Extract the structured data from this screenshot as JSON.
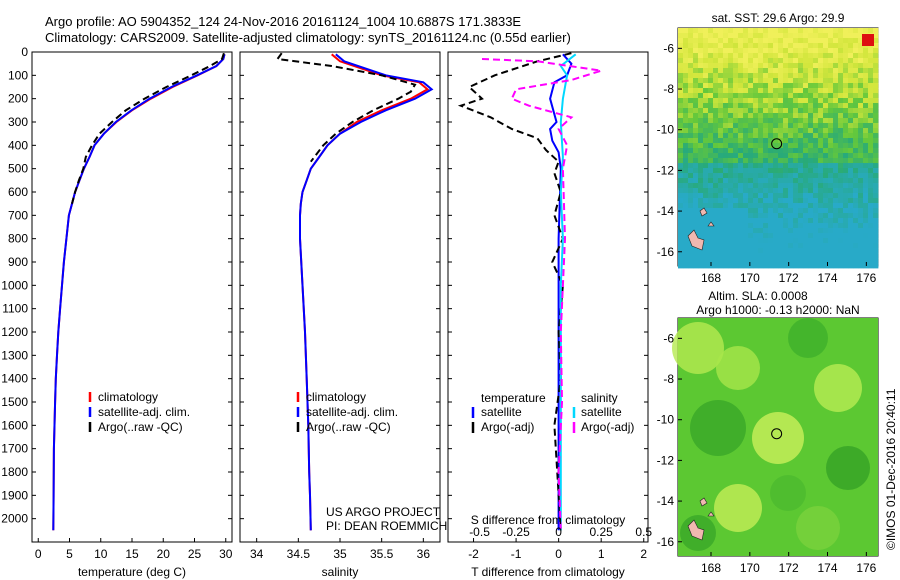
{
  "header": {
    "line1": "Argo profile: AO 5904352_124 24-Nov-2016 20161124_1004 10.6887S 171.3833E",
    "line2": "Climatology: CARS2009. Satellite-adjusted climatology: synTS_20161124.nc (0.55d earlier)"
  },
  "side_credit": "©IMOS 01-Dec-2016 20:40:11",
  "colors": {
    "climatology": "#ff0000",
    "satellite": "#0000ff",
    "argo": "#000000",
    "sat_diff": "#00d8ff",
    "argo_diff": "#ff00ff"
  },
  "chart_data": [
    {
      "id": "temperature",
      "type": "line",
      "xlabel": "temperature (deg C)",
      "ylabel": "",
      "xlim": [
        -1,
        31
      ],
      "ylim": [
        2100,
        0
      ],
      "xticks": [
        "0",
        "5",
        "10",
        "15",
        "20",
        "25",
        "30"
      ],
      "xtick_values": [
        0,
        5,
        10,
        15,
        20,
        25,
        30
      ],
      "yticks": [
        "0",
        "100",
        "200",
        "300",
        "400",
        "500",
        "600",
        "700",
        "800",
        "900",
        "1000",
        "1100",
        "1200",
        "1300",
        "1400",
        "1500",
        "1600",
        "1700",
        "1800",
        "1900",
        "2000"
      ],
      "ytick_values": [
        0,
        100,
        200,
        300,
        400,
        500,
        600,
        700,
        800,
        900,
        1000,
        1100,
        1200,
        1300,
        1400,
        1500,
        1600,
        1700,
        1800,
        1900,
        2000
      ],
      "legend": {
        "position": "lower-middle",
        "items": [
          "climatology",
          "satellite-adj. clim.",
          "Argo(..raw -QC)"
        ]
      },
      "series": [
        {
          "name": "climatology",
          "color": "red",
          "style": "solid",
          "x": [
            29.8,
            29.6,
            28.5,
            25.5,
            21.5,
            18,
            15,
            12.5,
            10.5,
            9,
            8.2,
            7.3,
            6.6,
            5.9,
            5.4,
            4.9,
            4.5,
            4.1,
            3.8,
            3.5,
            3.2,
            3,
            2.8,
            2.7,
            2.6,
            2.5,
            2.45,
            2.4
          ],
          "y": [
            10,
            30,
            60,
            100,
            150,
            200,
            250,
            300,
            350,
            400,
            450,
            500,
            550,
            600,
            650,
            700,
            800,
            900,
            1000,
            1100,
            1200,
            1300,
            1400,
            1500,
            1600,
            1700,
            1900,
            2050
          ]
        },
        {
          "name": "satellite-adj. clim.",
          "color": "blue",
          "style": "solid",
          "x": [
            29.8,
            29.6,
            28.5,
            25.4,
            21.3,
            17.8,
            14.9,
            12.4,
            10.5,
            9,
            8.2,
            7.3,
            6.6,
            5.9,
            5.4,
            4.9,
            4.5,
            4.1,
            3.8,
            3.5,
            3.2,
            3,
            2.8,
            2.7,
            2.6,
            2.5,
            2.45,
            2.4
          ],
          "y": [
            10,
            30,
            60,
            100,
            150,
            200,
            250,
            300,
            350,
            400,
            450,
            500,
            550,
            600,
            650,
            700,
            800,
            900,
            1000,
            1100,
            1200,
            1300,
            1400,
            1500,
            1600,
            1700,
            1900,
            2050
          ]
        },
        {
          "name": "Argo(..raw -QC)",
          "color": "black",
          "style": "dashed",
          "x": [
            29.7,
            29.4,
            27.5,
            24.5,
            20.5,
            17,
            14,
            11.8,
            9.8,
            8.6,
            7.6,
            7.2,
            6.5,
            5.9,
            5.4
          ],
          "y": [
            5,
            30,
            60,
            100,
            150,
            200,
            250,
            300,
            350,
            400,
            450,
            500,
            550,
            600,
            650
          ]
        }
      ]
    },
    {
      "id": "salinity",
      "type": "line",
      "xlabel": "salinity",
      "xlim": [
        33.8,
        36.2
      ],
      "ylim": [
        2100,
        0
      ],
      "xticks": [
        "34",
        "34.5",
        "35",
        "35.5",
        "36"
      ],
      "xtick_values": [
        34,
        34.5,
        35,
        35.5,
        36
      ],
      "legend": {
        "position": "lower-middle",
        "items": [
          "climatology",
          "satellite-adj. clim.",
          "Argo(..raw -QC)"
        ]
      },
      "annotation": [
        "US ARGO PROJECT",
        "PI: DEAN ROEMMICH"
      ],
      "series": [
        {
          "name": "climatology",
          "color": "red",
          "style": "solid",
          "x": [
            34.9,
            35,
            35.5,
            35.95,
            36.05,
            35.85,
            35.5,
            35.2,
            35.0,
            34.85,
            34.75,
            34.65,
            34.6,
            34.55,
            34.53,
            34.52,
            34.52,
            34.55,
            34.58,
            34.6,
            34.62,
            34.63,
            34.64,
            34.65
          ],
          "y": [
            10,
            40,
            100,
            130,
            160,
            200,
            250,
            300,
            350,
            400,
            450,
            500,
            550,
            600,
            650,
            700,
            800,
            1000,
            1200,
            1400,
            1600,
            1800,
            1900,
            2050
          ]
        },
        {
          "name": "satellite-adj. clim.",
          "color": "blue",
          "style": "solid",
          "x": [
            34.95,
            35.05,
            35.55,
            36,
            36.1,
            35.9,
            35.55,
            35.25,
            35.0,
            34.85,
            34.75,
            34.65,
            34.6,
            34.55,
            34.53,
            34.52,
            34.52,
            34.55,
            34.58,
            34.6,
            34.62,
            34.63,
            34.64,
            34.65
          ],
          "y": [
            10,
            40,
            100,
            130,
            160,
            200,
            250,
            300,
            350,
            400,
            450,
            500,
            550,
            600,
            650,
            700,
            800,
            1000,
            1200,
            1400,
            1600,
            1800,
            1900,
            2050
          ]
        },
        {
          "name": "Argo(..raw -QC)",
          "color": "black",
          "style": "dashed",
          "x": [
            34.3,
            34.25,
            34.9,
            35.5,
            35.9,
            35.85,
            35.7,
            35.4,
            35.15,
            34.95,
            34.8,
            34.65
          ],
          "y": [
            5,
            30,
            60,
            100,
            140,
            170,
            200,
            250,
            300,
            350,
            400,
            470
          ]
        }
      ]
    },
    {
      "id": "difference",
      "type": "line",
      "xlabel": "T difference from climatology",
      "xlabel_top": "S difference from climatology",
      "xlim": [
        -2.6,
        2.1
      ],
      "ylim": [
        2100,
        0
      ],
      "xticks": [
        "-2",
        "-1",
        "0",
        "1",
        "2"
      ],
      "xtick_values": [
        -2,
        -1,
        0,
        1,
        2
      ],
      "xticks_s": [
        "-0.5",
        "-0.25",
        "0",
        "0.25",
        "0.5"
      ],
      "xtick_values_s": [
        -2,
        -1,
        0,
        1,
        2
      ],
      "legend": {
        "position": "lower-middle",
        "items": [
          "temperature",
          "satellite",
          "Argo(-adj)",
          "salinity",
          "satellite",
          "Argo(-adj)"
        ]
      },
      "series": [
        {
          "name": "T satellite",
          "color": "blue",
          "style": "solid",
          "x": [
            0.1,
            0.3,
            0.2,
            -0.1,
            -0.2,
            -0.05,
            -0.2,
            -0.15,
            0,
            0.05,
            0,
            0,
            0
          ],
          "y": [
            10,
            50,
            100,
            130,
            200,
            300,
            330,
            380,
            430,
            500,
            800,
            1400,
            2050
          ]
        },
        {
          "name": "T Argo(-adj)",
          "color": "black",
          "style": "dashed",
          "x": [
            0.3,
            -0.5,
            -1.5,
            -2.1,
            -1.8,
            -2.3,
            -1.6,
            -1.1,
            -0.5,
            -0.3,
            0,
            -0.1,
            0.05,
            -0.1,
            0.1,
            -0.15,
            0.1,
            0,
            0.05,
            -0.1,
            0.05
          ],
          "y": [
            5,
            40,
            100,
            150,
            200,
            230,
            280,
            330,
            370,
            420,
            470,
            520,
            600,
            700,
            800,
            900,
            1000,
            1200,
            1400,
            1600,
            2050
          ]
        },
        {
          "name": "S satellite",
          "color": "cyan",
          "style": "solid",
          "x": [
            0.4,
            0.05,
            0.2,
            0.1,
            0.05,
            0.1,
            0.05,
            0.1,
            0.05,
            0.05,
            0.05,
            0.05
          ],
          "y": [
            10,
            60,
            100,
            200,
            300,
            450,
            600,
            800,
            1000,
            1400,
            1800,
            2050
          ]
        },
        {
          "name": "S Argo(-adj)",
          "color": "magenta",
          "style": "dashed",
          "x": [
            -1.8,
            -0.5,
            1.0,
            0.3,
            -1.0,
            -1.1,
            -0.7,
            0.3,
            0.0,
            0.2,
            0.1,
            0.15,
            0.05,
            0.08,
            0.0,
            0.05
          ],
          "y": [
            30,
            40,
            80,
            120,
            160,
            200,
            230,
            280,
            330,
            400,
            500,
            800,
            1200,
            1500,
            1800,
            2050
          ]
        }
      ]
    },
    {
      "id": "sst_map",
      "type": "heatmap",
      "title": "sat. SST: 29.6 Argo: 29.9",
      "xticks": [
        "168",
        "170",
        "172",
        "174",
        "176"
      ],
      "xtick_values": [
        168,
        170,
        172,
        174,
        176
      ],
      "yticks": [
        "-6",
        "-8",
        "-10",
        "-12",
        "-14",
        "-16"
      ],
      "ytick_values": [
        -6,
        -8,
        -10,
        -12,
        -14,
        -16
      ],
      "xlim": [
        166.3,
        176.6
      ],
      "ylim": [
        -16.7,
        -5.0
      ],
      "marker": {
        "lon": 171.38,
        "lat": -10.69
      }
    },
    {
      "id": "sla_map",
      "type": "heatmap",
      "title_line1": "Altim. SLA: 0.0008",
      "title_line2": "Argo h1000: -0.13 h2000: NaN",
      "xticks": [
        "168",
        "170",
        "172",
        "174",
        "176"
      ],
      "xtick_values": [
        168,
        170,
        172,
        174,
        176
      ],
      "yticks": [
        "-6",
        "-8",
        "-10",
        "-12",
        "-14",
        "-16"
      ],
      "ytick_values": [
        -6,
        -8,
        -10,
        -12,
        -14,
        -16
      ],
      "xlim": [
        166.3,
        176.6
      ],
      "ylim": [
        -16.7,
        -5.0
      ],
      "marker": {
        "lon": 171.38,
        "lat": -10.69
      }
    }
  ]
}
